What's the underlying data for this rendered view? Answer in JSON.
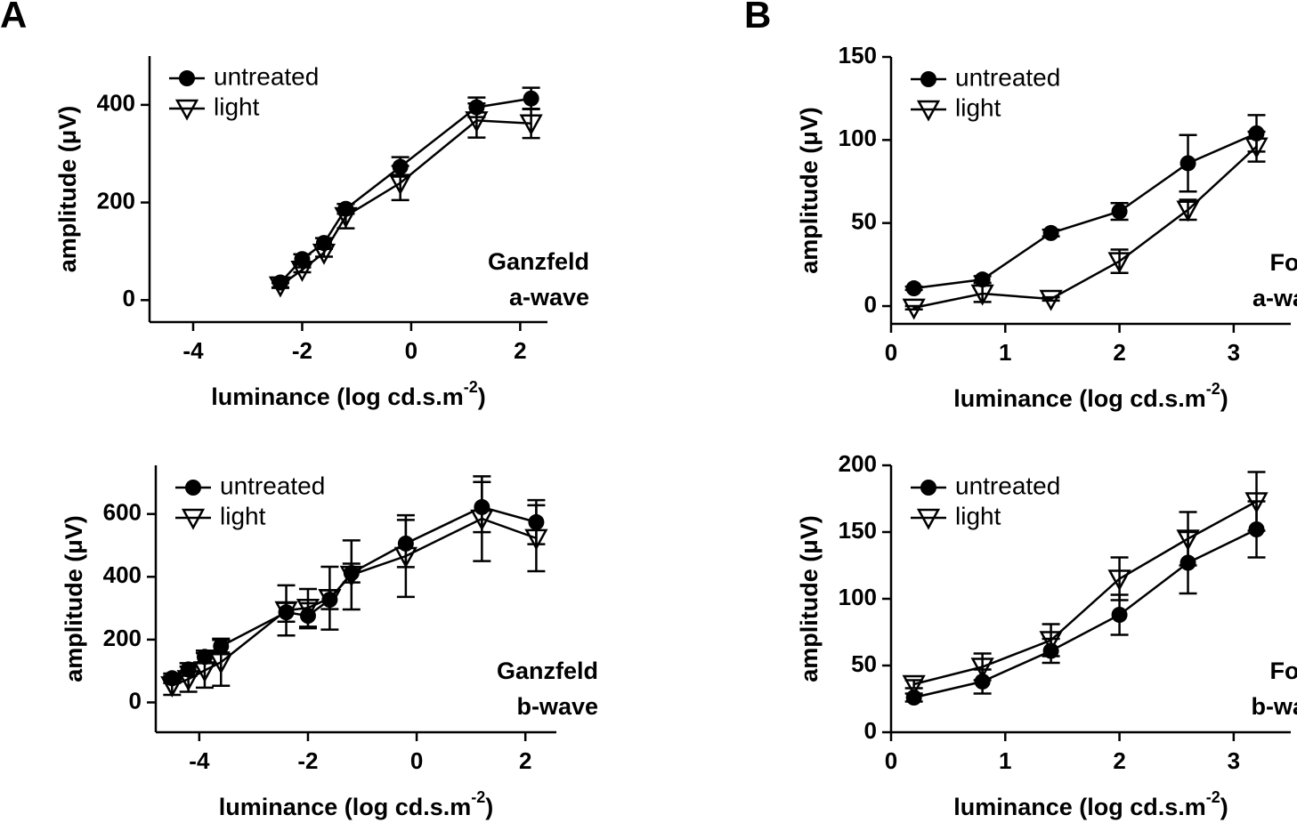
{
  "panels": [
    "A",
    "B"
  ],
  "chart_data": [
    {
      "type": "line",
      "ylabel": "amplitude (μV)",
      "xlabel": [
        "luminance (log cd.s.m",
        "-2",
        ")"
      ],
      "annotation": [
        "Ganzfeld",
        "a-wave"
      ],
      "x": [
        -2.4,
        -2,
        -1.6,
        -1.2,
        -0.2,
        1.2,
        2.2
      ],
      "series": [
        {
          "name": "untreated",
          "color": "#000000",
          "marker": "circle",
          "values": [
            36,
            84,
            117,
            187,
            273,
            395,
            413
          ],
          "errors": [
            10,
            10,
            10,
            10,
            20,
            20,
            22
          ]
        },
        {
          "name": "light",
          "color": "#000000",
          "marker": "triangle-down",
          "values": [
            30,
            62,
            97,
            172,
            240,
            368,
            362
          ],
          "errors": [
            5,
            5,
            8,
            25,
            35,
            35,
            30
          ]
        }
      ],
      "xlim": [
        -4.8,
        2.5
      ],
      "xticks": [
        -4,
        -2,
        0,
        2
      ],
      "ylim": [
        -45,
        500
      ],
      "yticks": [
        0,
        200,
        400
      ]
    },
    {
      "type": "line",
      "ylabel": "amplitude (μV)",
      "xlabel": [
        "luminance (log cd.s.m",
        "-2",
        ")"
      ],
      "annotation": [
        "Ganzfeld",
        "b-wave"
      ],
      "x": [
        -4.5,
        -4.2,
        -3.9,
        -3.6,
        -2.4,
        -2,
        -1.6,
        -1.2,
        -0.2,
        1.2,
        2.2
      ],
      "series": [
        {
          "name": "untreated",
          "color": "#000000",
          "marker": "circle",
          "values": [
            77,
            105,
            145,
            179,
            287,
            276,
            327,
            412,
            506,
            622,
            574
          ],
          "errors": [
            15,
            20,
            20,
            20,
            30,
            40,
            30,
            30,
            75,
            80,
            70
          ]
        },
        {
          "name": "light",
          "color": "#000000",
          "marker": "triangle-down",
          "values": [
            54,
            74,
            102,
            128,
            293,
            301,
            332,
            406,
            466,
            585,
            523
          ],
          "errors": [
            30,
            40,
            55,
            75,
            80,
            60,
            100,
            110,
            130,
            135,
            105
          ]
        }
      ],
      "xlim": [
        -4.8,
        2.57
      ],
      "xticks": [
        -4,
        -2,
        0,
        2
      ],
      "ylim": [
        -95,
        755
      ],
      "yticks": [
        0,
        200,
        400,
        600
      ]
    },
    {
      "type": "line",
      "ylabel": "amplitude (μV)",
      "xlabel": [
        "luminance (log cd.s.m",
        "-2",
        ")"
      ],
      "annotation": [
        "Focal",
        "a-wave"
      ],
      "x": [
        0.2,
        0.8,
        1.4,
        2,
        2.6,
        3.2
      ],
      "series": [
        {
          "name": "untreated",
          "color": "#000000",
          "marker": "circle",
          "values": [
            10.7,
            16,
            44,
            57,
            86,
            104
          ],
          "errors": [
            1,
            2,
            2,
            5,
            17,
            11
          ]
        },
        {
          "name": "light",
          "color": "#000000",
          "marker": "triangle-down",
          "values": [
            -1,
            7.5,
            4.3,
            27,
            58,
            96
          ],
          "errors": [
            1,
            5,
            1,
            7,
            6,
            9
          ]
        }
      ],
      "xlim": [
        0,
        3.5
      ],
      "xticks": [
        0,
        1,
        2,
        3
      ],
      "ylim": [
        -10.7,
        150
      ],
      "yticks": [
        0,
        50,
        100,
        150
      ]
    },
    {
      "type": "line",
      "ylabel": "amplitude (μV)",
      "xlabel": [
        "luminance (log cd.s.m",
        "-2",
        ")"
      ],
      "annotation": [
        "Focal",
        "b-wave"
      ],
      "x": [
        0.2,
        0.8,
        1.4,
        2,
        2.6,
        3.2
      ],
      "series": [
        {
          "name": "untreated",
          "color": "#000000",
          "marker": "circle",
          "values": [
            26,
            38,
            61,
            88,
            127,
            152
          ],
          "errors": [
            3,
            9,
            9,
            15,
            23,
            21
          ]
        },
        {
          "name": "light",
          "color": "#000000",
          "marker": "triangle-down",
          "values": [
            36,
            49,
            69,
            115,
            145,
            173
          ],
          "errors": [
            3,
            10,
            12,
            16,
            20,
            22
          ]
        }
      ],
      "xlim": [
        0,
        3.5
      ],
      "xticks": [
        0,
        1,
        2,
        3
      ],
      "ylim": [
        0,
        200
      ],
      "yticks": [
        0,
        50,
        100,
        150,
        200
      ]
    }
  ]
}
